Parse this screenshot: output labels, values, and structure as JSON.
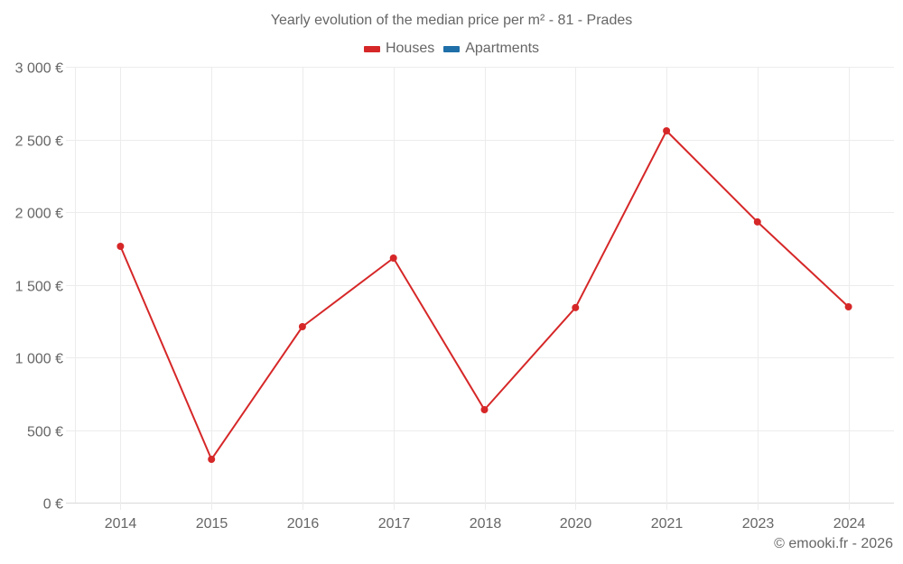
{
  "chart_data": {
    "type": "line",
    "title": "Yearly evolution of the median price per m² - 81 - Prades",
    "categories": [
      "2014",
      "2015",
      "2016",
      "2017",
      "2018",
      "2020",
      "2021",
      "2023",
      "2024"
    ],
    "series": [
      {
        "name": "Houses",
        "color": "#d62728",
        "values": [
          1764,
          298,
          1211,
          1683,
          640,
          1342,
          2559,
          1932,
          1348
        ]
      },
      {
        "name": "Apartments",
        "color": "#1f6fa8",
        "values": []
      }
    ],
    "xlabel": "",
    "ylabel": "",
    "ylim": [
      0,
      3000
    ],
    "yticks": [
      0,
      500,
      1000,
      1500,
      2000,
      2500,
      3000
    ],
    "ytick_labels": [
      "0 €",
      "500 €",
      "1 000 €",
      "1 500 €",
      "2 000 €",
      "2 500 €",
      "3 000 €"
    ],
    "grid": true,
    "legend_position": "top-center"
  },
  "header": {
    "title": "Yearly evolution of the median price per m² - 81 - Prades"
  },
  "legend": {
    "items": [
      {
        "label": "Houses",
        "color": "#d62728"
      },
      {
        "label": "Apartments",
        "color": "#1f6fa8"
      }
    ]
  },
  "footer": {
    "credit": "© emooki.fr - 2026"
  }
}
